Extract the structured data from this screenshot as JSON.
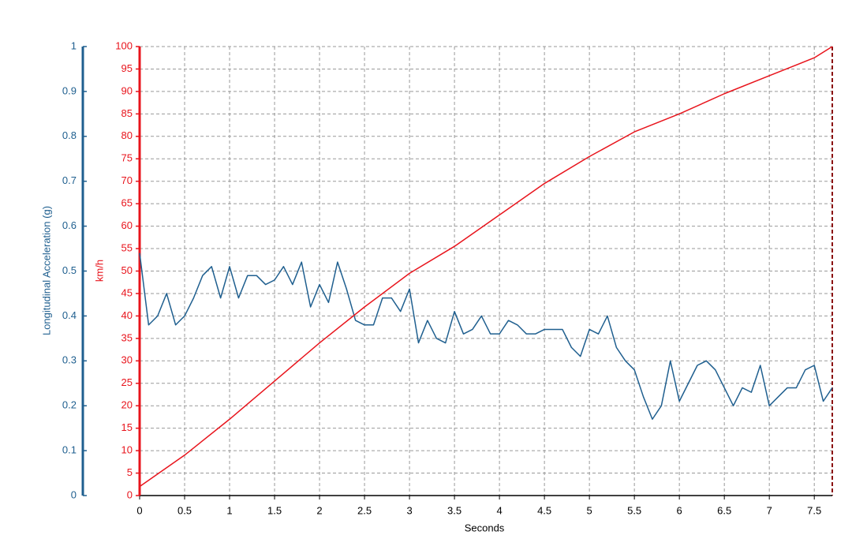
{
  "chart_data": {
    "type": "line",
    "xlabel": "Seconds",
    "ylabel": "Longitudinal Acceleration (g)",
    "y2label": "km/h",
    "xlim": [
      0,
      7.7
    ],
    "xticks": [
      0,
      0.5,
      1,
      1.5,
      2,
      2.5,
      3,
      3.5,
      4,
      4.5,
      5,
      5.5,
      6,
      6.5,
      7,
      7.5
    ],
    "ylim": [
      0,
      1
    ],
    "yticks": [
      0,
      0.1,
      0.2,
      0.3,
      0.4,
      0.5,
      0.6,
      0.7,
      0.8,
      0.9,
      1
    ],
    "y2lim": [
      0,
      100
    ],
    "y2ticks": [
      0,
      5,
      10,
      15,
      20,
      25,
      30,
      35,
      40,
      45,
      50,
      55,
      60,
      65,
      70,
      75,
      80,
      85,
      90,
      95,
      100
    ],
    "grid": true,
    "y_color": "#1f5f8f",
    "y2_color": "#e8141c",
    "series": [
      {
        "color": "#1f5f8f",
        "axis": "y",
        "x": [
          0,
          0.1,
          0.2,
          0.3,
          0.4,
          0.5,
          0.6,
          0.7,
          0.8,
          0.9,
          1,
          1.1,
          1.2,
          1.3,
          1.4,
          1.5,
          1.6,
          1.7,
          1.8,
          1.9,
          2,
          2.1,
          2.2,
          2.3,
          2.4,
          2.5,
          2.6,
          2.7,
          2.8,
          2.9,
          3,
          3.1,
          3.2,
          3.3,
          3.4,
          3.5,
          3.6,
          3.7,
          3.8,
          3.9,
          4,
          4.1,
          4.2,
          4.3,
          4.4,
          4.5,
          4.6,
          4.7,
          4.8,
          4.9,
          5,
          5.1,
          5.2,
          5.3,
          5.4,
          5.5,
          5.6,
          5.7,
          5.8,
          5.9,
          6,
          6.1,
          6.2,
          6.3,
          6.4,
          6.5,
          6.6,
          6.7,
          6.8,
          6.9,
          7,
          7.1,
          7.2,
          7.3,
          7.4,
          7.5,
          7.6,
          7.7
        ],
        "values": [
          0.54,
          0.38,
          0.4,
          0.45,
          0.38,
          0.4,
          0.44,
          0.49,
          0.51,
          0.44,
          0.51,
          0.44,
          0.49,
          0.49,
          0.47,
          0.48,
          0.51,
          0.47,
          0.52,
          0.42,
          0.47,
          0.43,
          0.52,
          0.46,
          0.39,
          0.38,
          0.38,
          0.44,
          0.44,
          0.41,
          0.46,
          0.34,
          0.39,
          0.35,
          0.34,
          0.41,
          0.36,
          0.37,
          0.4,
          0.36,
          0.36,
          0.39,
          0.38,
          0.36,
          0.36,
          0.37,
          0.37,
          0.37,
          0.33,
          0.31,
          0.37,
          0.36,
          0.4,
          0.33,
          0.3,
          0.28,
          0.22,
          0.17,
          0.2,
          0.3,
          0.21,
          0.25,
          0.29,
          0.3,
          0.28,
          0.24,
          0.2,
          0.24,
          0.23,
          0.29,
          0.2,
          0.22,
          0.24,
          0.24,
          0.28,
          0.29,
          0.21,
          0.24
        ]
      },
      {
        "color": "#e8141c",
        "axis": "y2",
        "x": [
          0,
          0.5,
          1,
          1.5,
          2,
          2.5,
          3,
          3.5,
          4,
          4.5,
          5,
          5.5,
          6,
          6.5,
          7,
          7.5,
          7.7
        ],
        "values": [
          2,
          9,
          17,
          25.5,
          34,
          42,
          49.5,
          55.5,
          62.5,
          69.5,
          75.5,
          81,
          85,
          89.5,
          93.5,
          97.5,
          100
        ]
      }
    ]
  }
}
